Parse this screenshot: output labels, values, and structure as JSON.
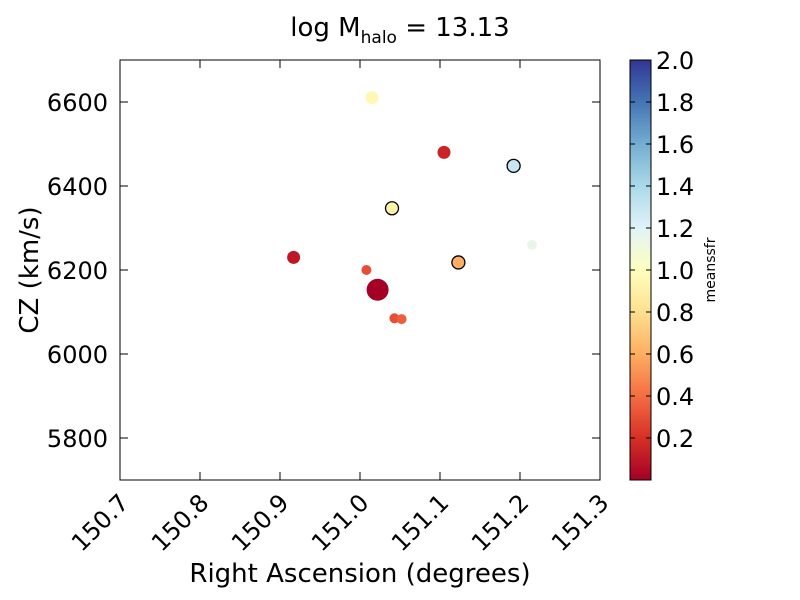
{
  "chart_data": {
    "type": "scatter",
    "title": "log M",
    "title_subscript": "halo",
    "title_value": " = 13.13",
    "xlabel": "Right Ascension (degrees)",
    "ylabel": "CZ (km/s)",
    "xlim": [
      150.7,
      151.3
    ],
    "ylim": [
      5700,
      6700
    ],
    "x_ticks": [
      "150.7",
      "150.8",
      "150.9",
      "151.0",
      "151.1",
      "151.2",
      "151.3"
    ],
    "y_ticks": [
      "5800",
      "6000",
      "6200",
      "6400",
      "6600"
    ],
    "colorbar": {
      "label": "meanssfr",
      "range": [
        0.0,
        2.0
      ],
      "ticks": [
        "0.2",
        "0.4",
        "0.6",
        "0.8",
        "1.0",
        "1.2",
        "1.4",
        "1.6",
        "1.8",
        "2.0"
      ],
      "colormap": "RdYlBu"
    },
    "points": [
      {
        "x": 151.015,
        "y": 6610,
        "c": 0.95,
        "size": "small",
        "outlined": false
      },
      {
        "x": 151.105,
        "y": 6480,
        "c": 0.15,
        "size": "small",
        "outlined": false
      },
      {
        "x": 151.192,
        "y": 6448,
        "c": 1.3,
        "size": "medium",
        "outlined": true
      },
      {
        "x": 151.04,
        "y": 6347,
        "c": 0.92,
        "size": "medium",
        "outlined": true
      },
      {
        "x": 151.215,
        "y": 6260,
        "c": 1.15,
        "size": "tiny",
        "outlined": false
      },
      {
        "x": 150.917,
        "y": 6230,
        "c": 0.1,
        "size": "small",
        "outlined": false
      },
      {
        "x": 151.123,
        "y": 6218,
        "c": 0.6,
        "size": "medium",
        "outlined": true
      },
      {
        "x": 151.008,
        "y": 6200,
        "c": 0.3,
        "size": "tiny",
        "outlined": false
      },
      {
        "x": 151.022,
        "y": 6153,
        "c": 0.0,
        "size": "large",
        "outlined": false
      },
      {
        "x": 151.043,
        "y": 6085,
        "c": 0.3,
        "size": "tiny",
        "outlined": false
      },
      {
        "x": 151.052,
        "y": 6083,
        "c": 0.35,
        "size": "tiny",
        "outlined": false
      }
    ]
  }
}
